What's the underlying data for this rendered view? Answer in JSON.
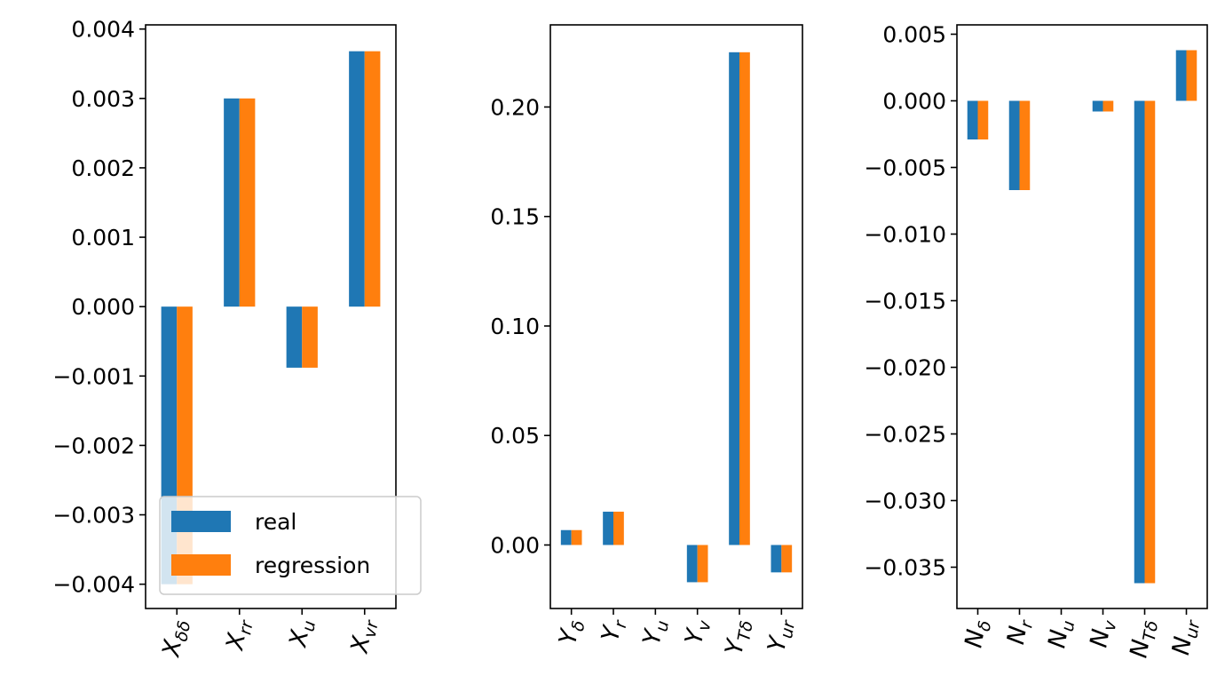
{
  "colors": {
    "real": "#1f77b4",
    "regression": "#ff7f0e"
  },
  "legend": {
    "placement": "lower-left",
    "entries": [
      "real",
      "regression"
    ],
    "panel": 0
  },
  "chart_data": [
    {
      "type": "bar",
      "categories": [
        {
          "main": "X",
          "sub": "δδ"
        },
        {
          "main": "X",
          "sub": "rr"
        },
        {
          "main": "X",
          "sub": "u"
        },
        {
          "main": "X",
          "sub": "vr"
        }
      ],
      "series": [
        {
          "name": "real",
          "values": [
            -0.004,
            0.003,
            -0.00088,
            0.00368
          ]
        },
        {
          "name": "regression",
          "values": [
            -0.004,
            0.003,
            -0.00088,
            0.00368
          ]
        }
      ],
      "ylim": [
        -0.00435,
        0.00406
      ],
      "yticks": [
        {
          "value": -0.004,
          "label": "−0.004"
        },
        {
          "value": -0.003,
          "label": "−0.003"
        },
        {
          "value": -0.002,
          "label": "−0.002"
        },
        {
          "value": -0.001,
          "label": "−0.001"
        },
        {
          "value": 0.0,
          "label": "0.000"
        },
        {
          "value": 0.001,
          "label": "0.001"
        },
        {
          "value": 0.002,
          "label": "0.002"
        },
        {
          "value": 0.003,
          "label": "0.003"
        },
        {
          "value": 0.004,
          "label": "0.004"
        }
      ],
      "grid": false
    },
    {
      "type": "bar",
      "categories": [
        {
          "main": "Y",
          "sub": "δ"
        },
        {
          "main": "Y",
          "sub": "r"
        },
        {
          "main": "Y",
          "sub": "u"
        },
        {
          "main": "Y",
          "sub": "v"
        },
        {
          "main": "Y",
          "sub": "Tδ"
        },
        {
          "main": "Y",
          "sub": "ur"
        }
      ],
      "series": [
        {
          "name": "real",
          "values": [
            0.0068,
            0.0152,
            0.0,
            -0.017,
            0.225,
            -0.0125
          ]
        },
        {
          "name": "regression",
          "values": [
            0.0068,
            0.0152,
            0.0,
            -0.017,
            0.225,
            -0.0125
          ]
        }
      ],
      "ylim": [
        -0.029,
        0.2375
      ],
      "yticks": [
        {
          "value": 0.0,
          "label": "0.00"
        },
        {
          "value": 0.05,
          "label": "0.05"
        },
        {
          "value": 0.1,
          "label": "0.10"
        },
        {
          "value": 0.15,
          "label": "0.15"
        },
        {
          "value": 0.2,
          "label": "0.20"
        }
      ],
      "grid": false
    },
    {
      "type": "bar",
      "categories": [
        {
          "main": "N",
          "sub": "δ"
        },
        {
          "main": "N",
          "sub": "r"
        },
        {
          "main": "N",
          "sub": "u"
        },
        {
          "main": "N",
          "sub": "v"
        },
        {
          "main": "N",
          "sub": "Tδ"
        },
        {
          "main": "N",
          "sub": "ur"
        }
      ],
      "series": [
        {
          "name": "real",
          "values": [
            -0.0029,
            -0.0067,
            0.0,
            -0.0008,
            -0.0362,
            0.0038
          ]
        },
        {
          "name": "regression",
          "values": [
            -0.0029,
            -0.0067,
            0.0,
            -0.0008,
            -0.0362,
            0.0038
          ]
        }
      ],
      "ylim": [
        -0.0381,
        0.0057
      ],
      "yticks": [
        {
          "value": -0.035,
          "label": "−0.035"
        },
        {
          "value": -0.03,
          "label": "−0.030"
        },
        {
          "value": -0.025,
          "label": "−0.025"
        },
        {
          "value": -0.02,
          "label": "−0.020"
        },
        {
          "value": -0.015,
          "label": "−0.015"
        },
        {
          "value": -0.01,
          "label": "−0.010"
        },
        {
          "value": -0.005,
          "label": "−0.005"
        },
        {
          "value": 0.0,
          "label": "0.000"
        },
        {
          "value": 0.005,
          "label": "0.005"
        }
      ],
      "grid": false
    }
  ]
}
